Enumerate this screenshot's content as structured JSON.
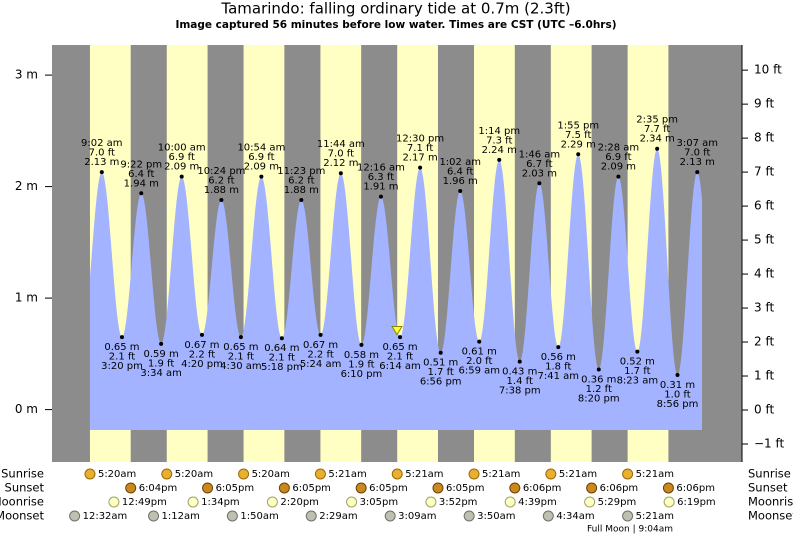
{
  "chart_data": {
    "type": "tide",
    "title": "Tamarindo: falling  ordinary tide at 0.7m (2.3ft)",
    "subtitle": "Image captured 56 minutes before low water. Times are CST (UTC –6.0hrs)",
    "ylim": [
      -0.47,
      3.27
    ],
    "yticks": [
      {
        "value": 0,
        "label": "0 m"
      },
      {
        "value": 1,
        "label": "1 m"
      },
      {
        "value": 2,
        "label": "2 m"
      },
      {
        "value": 3,
        "label": "3 m"
      }
    ],
    "y2lim": [
      -1.53,
      10.74
    ],
    "y2ticks": [
      {
        "value": -1,
        "label": "−1 ft"
      },
      {
        "value": 0,
        "label": "0 ft"
      },
      {
        "value": 1,
        "label": "1 ft"
      },
      {
        "value": 2,
        "label": "2 ft"
      },
      {
        "value": 3,
        "label": "3 ft"
      },
      {
        "value": 4,
        "label": "4 ft"
      },
      {
        "value": 5,
        "label": "5 ft"
      },
      {
        "value": 6,
        "label": "6 ft"
      },
      {
        "value": 7,
        "label": "7 ft"
      },
      {
        "value": 8,
        "label": "8 ft"
      },
      {
        "value": 9,
        "label": "9 ft"
      },
      {
        "value": 10,
        "label": "10 ft"
      }
    ],
    "color": "#a3b3ff",
    "extremes": {
      "times": [
        "9:02 am",
        "3:20 pm",
        "9:22 pm",
        "3:34 am",
        "10:00 am",
        "4:20 pm",
        "10:24 pm",
        "4:30 am",
        "10:54 am",
        "5:18 pm",
        "11:23 pm",
        "5:24 am",
        "11:44 am",
        "6:10 pm",
        "12:16 am",
        "6:14 am",
        "12:30 pm",
        "6:56 pm",
        "1:02 am",
        "6:59 am",
        "1:14 pm",
        "7:38 pm",
        "1:46 am",
        "7:41 am",
        "1:55 pm",
        "8:20 pm",
        "2:28 am",
        "8:23 am",
        "2:35 pm",
        "8:56 pm",
        "3:07 am"
      ],
      "values": [
        2.13,
        0.65,
        1.94,
        0.59,
        2.09,
        0.67,
        1.88,
        0.65,
        2.09,
        0.64,
        1.88,
        0.67,
        2.12,
        0.58,
        1.91,
        0.65,
        2.17,
        0.51,
        1.96,
        0.61,
        2.24,
        0.43,
        2.03,
        0.56,
        2.29,
        0.36,
        2.09,
        0.52,
        2.34,
        0.31,
        2.13
      ],
      "value_labels": [
        "2.13 m",
        "0.65 m",
        "1.94 m",
        "0.59 m",
        "2.09 m",
        "0.67 m",
        "1.88 m",
        "0.65 m",
        "2.09 m",
        "0.64 m",
        "1.88 m",
        "0.67 m",
        "2.12 m",
        "0.58 m",
        "1.91 m",
        "0.65 m",
        "2.17 m",
        "0.51 m",
        "1.96 m",
        "0.61 m",
        "2.24 m",
        "0.43 m",
        "2.03 m",
        "0.56 m",
        "2.29 m",
        "0.36 m",
        "2.09 m",
        "0.52 m",
        "2.34 m",
        "0.31 m",
        "2.13 m"
      ],
      "ft_labels": [
        "7.0 ft",
        "2.1 ft",
        "6.4 ft",
        "1.9 ft",
        "6.9 ft",
        "2.2 ft",
        "6.2 ft",
        "2.1 ft",
        "6.9 ft",
        "2.1 ft",
        "6.2 ft",
        "2.2 ft",
        "7.0 ft",
        "1.9 ft",
        "6.3 ft",
        "2.1 ft",
        "7.1 ft",
        "1.7 ft",
        "6.4 ft",
        "2.0 ft",
        "7.3 ft",
        "1.4 ft",
        "6.7 ft",
        "1.8 ft",
        "7.5 ft",
        "1.2 ft",
        "6.9 ft",
        "1.7 ft",
        "7.7 ft",
        "1.0 ft",
        "7.0 ft"
      ]
    },
    "current": {
      "value": 0.7
    },
    "row_labels": [
      "Sunrise",
      "Sunset",
      "Moonrise",
      "Moonset"
    ],
    "days": [
      {
        "sunrise": "5:20am",
        "sunset": "6:04pm",
        "moonrise": "12:49pm",
        "moonset": "12:32am"
      },
      {
        "sunrise": "5:20am",
        "sunset": "6:05pm",
        "moonrise": "1:34pm",
        "moonset": "1:12am"
      },
      {
        "sunrise": "5:20am",
        "sunset": "6:05pm",
        "moonrise": "2:20pm",
        "moonset": "1:50am"
      },
      {
        "sunrise": "5:21am",
        "sunset": "6:05pm",
        "moonrise": "3:05pm",
        "moonset": "2:29am"
      },
      {
        "sunrise": "5:21am",
        "sunset": "6:05pm",
        "moonrise": "3:52pm",
        "moonset": "3:09am"
      },
      {
        "sunrise": "5:21am",
        "sunset": "6:06pm",
        "moonrise": "4:39pm",
        "moonset": "3:50am"
      },
      {
        "sunrise": "5:21am",
        "sunset": "6:06pm",
        "moonrise": "5:29pm",
        "moonset": "4:34am"
      },
      {
        "sunrise": "5:21am",
        "sunset": "6:06pm",
        "moonrise": "6:19pm",
        "moonset": "5:21am"
      }
    ],
    "moon_phase": "Full Moon | 9:04am"
  }
}
